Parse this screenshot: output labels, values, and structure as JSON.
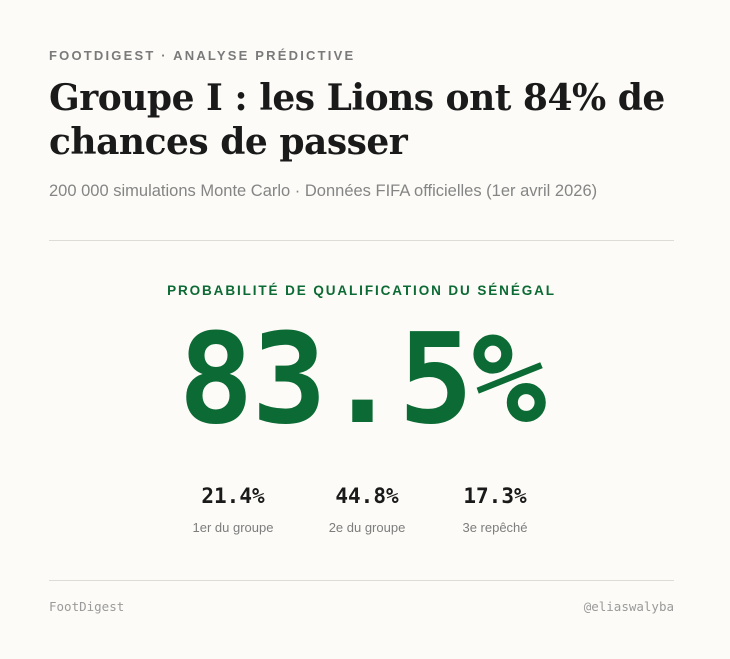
{
  "header": {
    "eyebrow": "FOOTDIGEST · ANALYSE PRÉDICTIVE",
    "title": "Groupe I : les Lions ont 84% de chances de passer",
    "subtitle": "200 000 simulations Monte Carlo · Données FIFA officielles (1er avril 2026)"
  },
  "main_metric": {
    "label": "PROBABILITÉ DE QUALIFICATION DU SÉNÉGAL",
    "value": "83.5%",
    "color": "#0c6a34"
  },
  "breakdown": [
    {
      "value": "21.4%",
      "label": "1er du groupe"
    },
    {
      "value": "44.8%",
      "label": "2e du groupe"
    },
    {
      "value": "17.3%",
      "label": "3e repêché"
    }
  ],
  "footer": {
    "brand": "FootDigest",
    "handle": "@eliaswalyba"
  }
}
